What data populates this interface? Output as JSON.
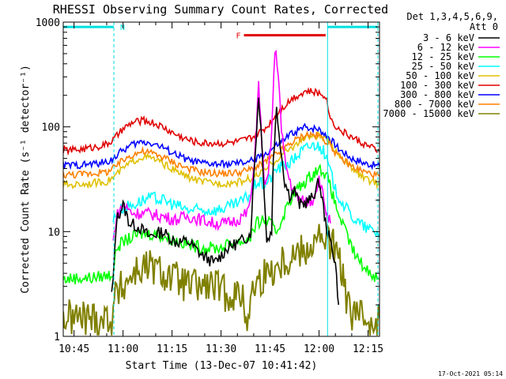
{
  "chart_data": {
    "type": "line",
    "title": "RHESSI Observing Summary Count Rates, Corrected",
    "xlabel": "Start Time (13-Dec-07 10:41:42)",
    "ylabel": "Corrected Count Rate (s⁻¹ detector⁻¹)",
    "yscale": "log",
    "xlim_minutes": [
      41.7,
      138.5
    ],
    "ylim": [
      1,
      1000
    ],
    "xtick_minutes": [
      45,
      60,
      75,
      90,
      105,
      120,
      135
    ],
    "xtick_labels": [
      "10:45",
      "11:00",
      "11:15",
      "11:30",
      "11:45",
      "12:00",
      "12:15"
    ],
    "ytick_values": [
      1,
      10,
      100,
      1000
    ],
    "ytick_labels": [
      "1",
      "10",
      "100",
      "1000"
    ],
    "legend_header": [
      "Det 1,3,4,5,6,9,",
      "Att 0"
    ],
    "timestamp": "17-Oct-2021 05:14",
    "annotations": [
      {
        "label": "N",
        "start_min": 41.7,
        "end_min": 57.2,
        "y": 900,
        "color": "#00e0e0"
      },
      {
        "label": "",
        "start_min": 122.5,
        "end_min": 138.0,
        "y": 900,
        "color": "#00e0e0"
      },
      {
        "label": "F",
        "start_min": 97.0,
        "end_min": 122.0,
        "y": 750,
        "color": "#e00000"
      }
    ],
    "vlines": [
      {
        "minute": 57.2,
        "color": "#00e0e0",
        "style": "dashed"
      },
      {
        "minute": 122.6,
        "color": "#00e0e0",
        "style": "solid"
      },
      {
        "minute": 138.0,
        "color": "#00e0e0",
        "style": "dashed"
      }
    ],
    "series": [
      {
        "name": "3 - 6 keV",
        "color": "#000000",
        "x": [
          56.5,
          57.0,
          58.0,
          60.0,
          62.0,
          65.0,
          68.0,
          72.0,
          76.0,
          80.0,
          84.0,
          88.0,
          92.0,
          94.0,
          96.0,
          99.0,
          100.5,
          101.5,
          102.5,
          104.0,
          105.5,
          106.0,
          107.0,
          108.5,
          109.5,
          111.0,
          112.5,
          114.0,
          116.0,
          118.0,
          120.0,
          121.0,
          122.0,
          123.0,
          124.0,
          125.0,
          126.0
        ],
        "values": [
          2.5,
          3.5,
          13,
          18,
          12,
          11,
          9,
          10,
          8,
          8,
          6,
          5,
          7,
          7.5,
          8,
          9.5,
          60,
          200,
          70,
          8,
          10,
          50,
          150,
          55,
          30,
          22,
          25,
          18,
          19,
          21,
          30,
          20,
          12,
          9,
          7,
          5,
          2
        ]
      },
      {
        "name": "6 - 12 keV",
        "color": "#ff00ff",
        "x": [
          57.0,
          58.0,
          60.0,
          63.0,
          67.0,
          72.0,
          76.0,
          80.0,
          84.0,
          88.0,
          92.0,
          95.0,
          98.0,
          99.5,
          100.5,
          101.5,
          102.5,
          103.5,
          104.5,
          105.5,
          106.5,
          107.5,
          108.5,
          109.5,
          110.5,
          111.5,
          112.5,
          114.0,
          116.0,
          118.0,
          120.0,
          121.5,
          122.5,
          123.5
        ],
        "values": [
          8,
          14,
          18,
          15,
          15,
          14,
          13,
          14,
          13,
          12,
          12,
          13,
          15,
          24,
          70,
          250,
          70,
          25,
          35,
          90,
          550,
          350,
          90,
          50,
          35,
          28,
          24,
          20,
          19,
          20,
          32,
          20,
          14,
          12
        ]
      },
      {
        "name": "12 - 25 keV",
        "color": "#00ff00",
        "x": [
          41.7,
          45.0,
          50.0,
          55.0,
          57.0,
          58.0,
          60.0,
          65.0,
          70.0,
          75.0,
          80.0,
          85.0,
          90.0,
          94.0,
          97.0,
          99.0,
          101.0,
          103.0,
          105.0,
          107.0,
          109.0,
          111.0,
          113.0,
          115.0,
          117.0,
          119.0,
          121.0,
          123.0,
          125.0,
          128.0,
          131.0,
          134.0,
          138.5
        ],
        "values": [
          3.5,
          3.6,
          3.6,
          3.8,
          4,
          7,
          8,
          9.5,
          9.5,
          8.5,
          7.5,
          7,
          7,
          8,
          8,
          9,
          12,
          13,
          12,
          10,
          14,
          20,
          25,
          28,
          33,
          38,
          40,
          30,
          18,
          10,
          6,
          4.5,
          3.5
        ]
      },
      {
        "name": "25 - 50 keV",
        "color": "#00ffff",
        "x": [
          57.0,
          58.0,
          60.0,
          63.0,
          66.0,
          69.0,
          72.0,
          76.0,
          80.0,
          84.0,
          88.0,
          92.0,
          96.0,
          99.0,
          101.0,
          103.0,
          105.0,
          107.0,
          109.0,
          111.0,
          113.0,
          115.0,
          117.0,
          119.0,
          121.0,
          123.0,
          125.0,
          128.0,
          131.0,
          134.0,
          138.5
        ],
        "values": [
          13,
          15,
          17,
          18,
          20,
          21,
          20,
          18,
          16,
          16,
          16,
          17,
          19,
          23,
          30,
          28,
          32,
          40,
          42,
          45,
          52,
          60,
          65,
          68,
          62,
          42,
          25,
          17,
          13,
          11,
          9.5
        ]
      },
      {
        "name": "50 - 100 keV",
        "color": "#e0c000",
        "x": [
          41.7,
          45.0,
          50.0,
          55.0,
          57.0,
          60.0,
          63.0,
          66.0,
          69.0,
          72.0,
          76.0,
          80.0,
          84.0,
          88.0,
          92.0,
          96.0,
          100.0,
          104.0,
          108.0,
          112.0,
          116.0,
          120.0,
          123.0,
          126.0,
          130.0,
          134.0,
          138.5
        ],
        "values": [
          28,
          28,
          29,
          30,
          33,
          40,
          47,
          52,
          50,
          45,
          38,
          33,
          30,
          29,
          29,
          30,
          33,
          40,
          52,
          65,
          80,
          82,
          72,
          55,
          40,
          32,
          28
        ]
      },
      {
        "name": "100 - 300 keV",
        "color": "#e00000",
        "x": [
          41.7,
          45.0,
          50.0,
          55.0,
          57.0,
          60.0,
          63.0,
          66.0,
          69.0,
          72.0,
          76.0,
          80.0,
          84.0,
          88.0,
          92.0,
          96.0,
          100.0,
          104.0,
          108.0,
          112.0,
          116.0,
          120.0,
          122.0,
          123.5,
          126.0,
          130.0,
          134.0,
          138.5
        ],
        "values": [
          60,
          60,
          63,
          68,
          75,
          95,
          110,
          115,
          110,
          100,
          85,
          75,
          70,
          70,
          70,
          73,
          80,
          100,
          145,
          190,
          220,
          210,
          200,
          120,
          95,
          80,
          68,
          58
        ]
      },
      {
        "name": "300 - 800 keV",
        "color": "#0000ff",
        "x": [
          41.7,
          45.0,
          50.0,
          55.0,
          57.0,
          60.0,
          63.0,
          66.0,
          69.0,
          72.0,
          76.0,
          80.0,
          84.0,
          88.0,
          92.0,
          96.0,
          100.0,
          104.0,
          108.0,
          112.0,
          116.0,
          120.0,
          123.0,
          126.0,
          130.0,
          134.0,
          138.5
        ],
        "values": [
          43,
          43,
          44,
          46,
          50,
          60,
          68,
          72,
          70,
          64,
          55,
          48,
          45,
          44,
          44,
          45,
          48,
          56,
          70,
          88,
          100,
          95,
          80,
          62,
          50,
          45,
          42
        ]
      },
      {
        "name": "800 - 7000 keV",
        "color": "#ff8000",
        "x": [
          41.7,
          45.0,
          50.0,
          55.0,
          57.0,
          60.0,
          63.0,
          66.0,
          69.0,
          72.0,
          76.0,
          80.0,
          84.0,
          88.0,
          92.0,
          96.0,
          100.0,
          104.0,
          108.0,
          112.0,
          116.0,
          120.0,
          123.0,
          126.0,
          130.0,
          134.0,
          138.5
        ],
        "values": [
          35,
          35,
          36,
          37,
          40,
          48,
          55,
          58,
          56,
          52,
          45,
          40,
          37,
          36,
          36,
          37,
          40,
          47,
          58,
          72,
          85,
          82,
          70,
          52,
          42,
          37,
          34
        ]
      },
      {
        "name": "7000 - 15000 keV",
        "color": "#808000",
        "x": [
          41.7,
          45.0,
          50.0,
          54.0,
          56.5,
          57.0,
          58.0,
          60.0,
          63.0,
          66.0,
          69.0,
          72.0,
          76.0,
          80.0,
          84.0,
          88.0,
          92.0,
          96.0,
          98.0,
          100.0,
          104.0,
          108.0,
          112.0,
          116.0,
          120.0,
          123.0,
          125.0,
          127.0,
          129.0,
          133.0,
          138.5
        ],
        "values": [
          1.5,
          1.5,
          1.5,
          1.5,
          1.5,
          2,
          2.5,
          3,
          4,
          4.5,
          4.5,
          4,
          3.5,
          3,
          3,
          3,
          2.5,
          2.5,
          1.5,
          3,
          4,
          5,
          6,
          7,
          8.5,
          8,
          7,
          4,
          1.8,
          1.5,
          1.5
        ]
      }
    ]
  }
}
